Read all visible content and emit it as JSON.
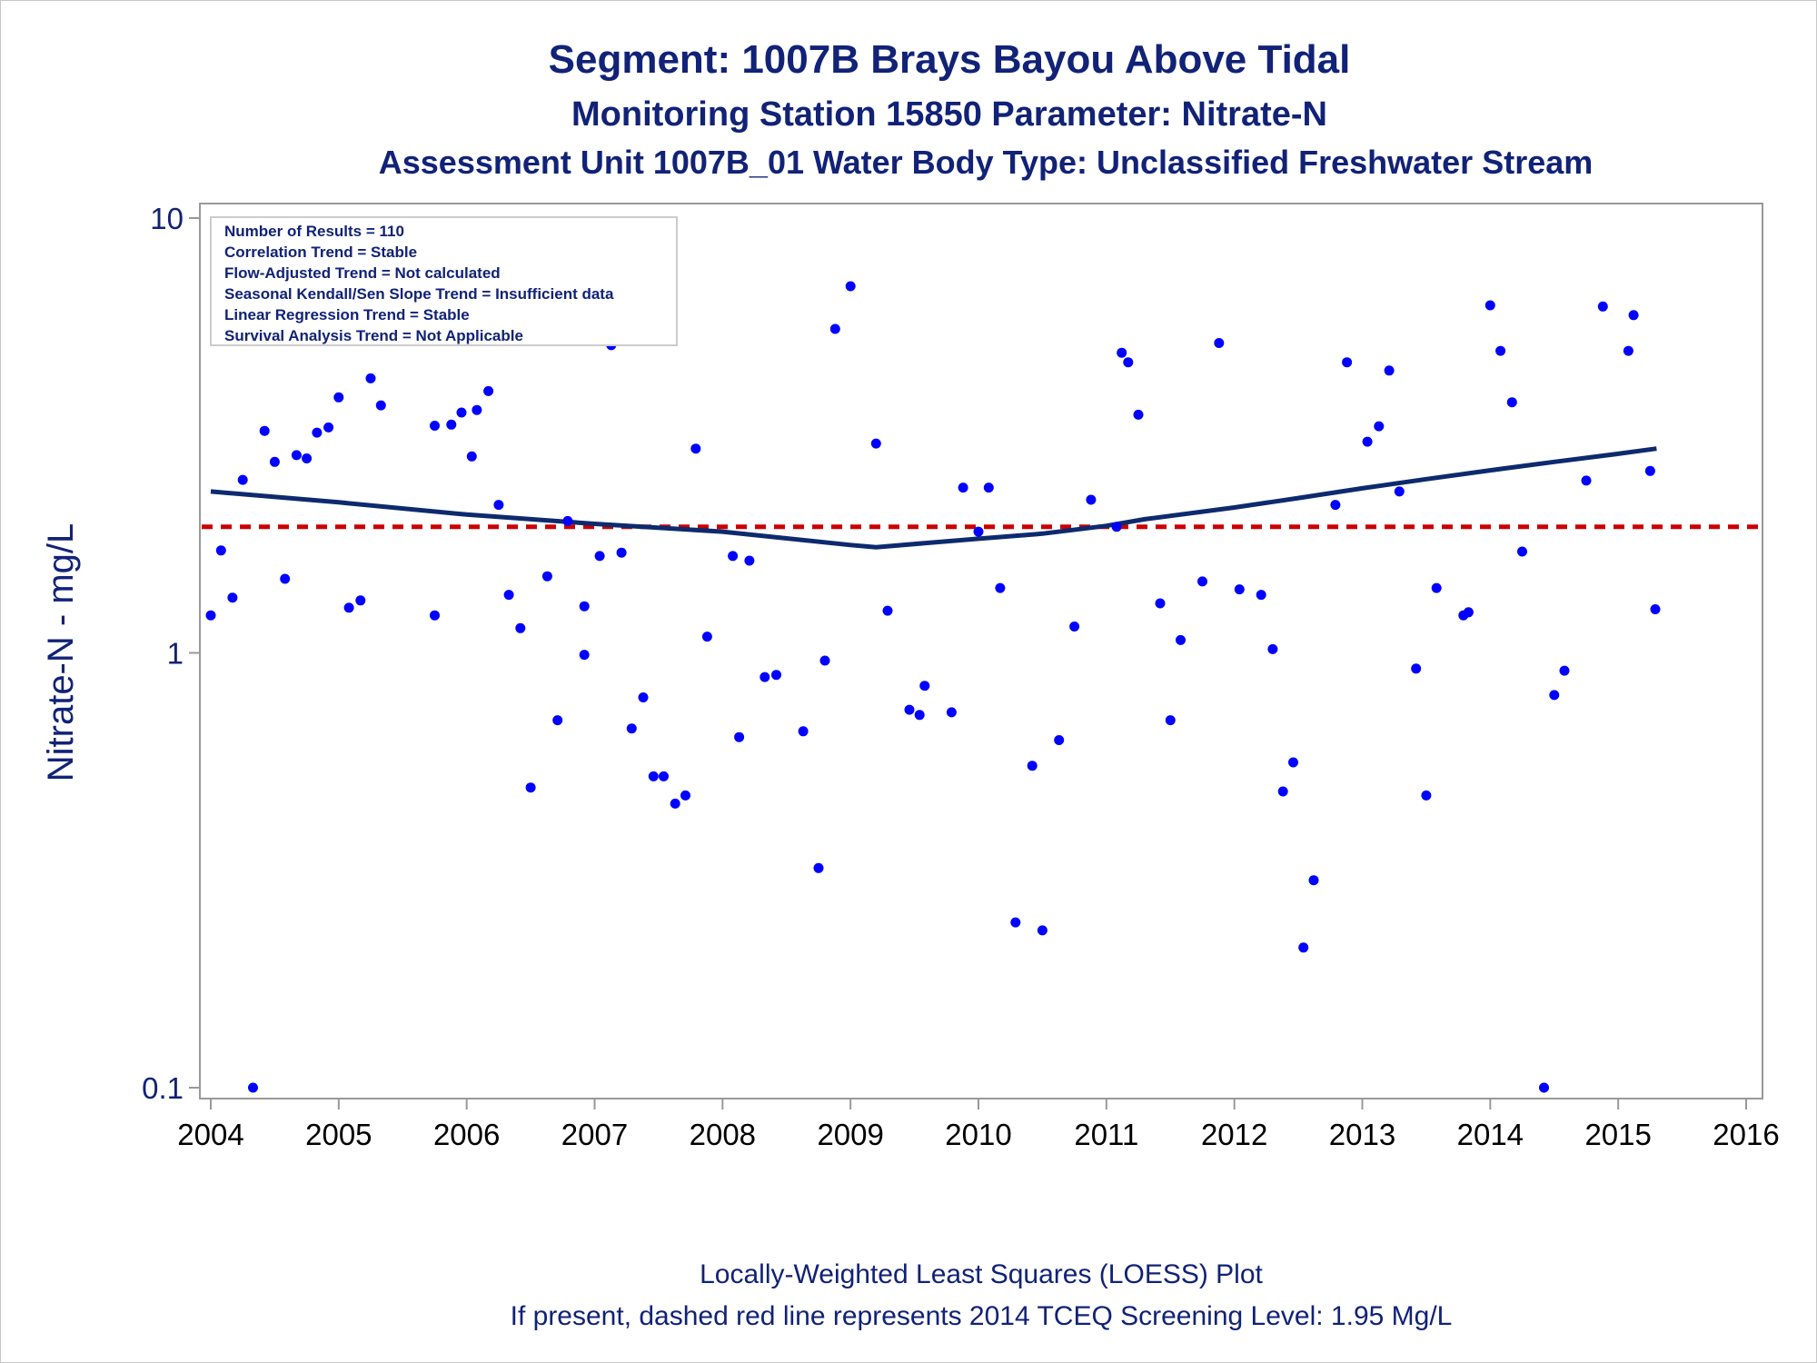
{
  "titles": {
    "line1": "Segment: 1007B  Brays Bayou Above Tidal",
    "line2": "Monitoring Station 15850 Parameter: Nitrate-N",
    "line3": "Assessment Unit 1007B_01   Water Body Type: Unclassified Freshwater Stream"
  },
  "info_box": [
    "Number of Results = 110",
    "Correlation Trend = Stable",
    "Flow-Adjusted Trend = Not calculated",
    "Seasonal Kendall/Sen Slope Trend = Insufficient data",
    "Linear Regression Trend = Stable",
    "Survival Analysis Trend = Not Applicable"
  ],
  "footnotes": {
    "line1": "Locally-Weighted Least Squares (LOESS) Plot",
    "line2": "If present, dashed red line represents 2014 TCEQ Screening Level: 1.95 Mg/L"
  },
  "colors": {
    "title": "#112277",
    "points": "#0000ff",
    "loess": "#0d2a6e",
    "screening": "#cc0000",
    "axis": "#999999"
  },
  "chart_data": {
    "type": "scatter",
    "ylabel": "Nitrate-N - mg/L",
    "xlabel": "",
    "yscale": "log",
    "xlim": [
      2004,
      2016
    ],
    "ylim": [
      0.1,
      10
    ],
    "x_ticks": [
      "2004",
      "2005",
      "2006",
      "2007",
      "2008",
      "2009",
      "2010",
      "2011",
      "2012",
      "2013",
      "2014",
      "2015",
      "2016"
    ],
    "y_ticks": [
      "0.1",
      "1",
      "10"
    ],
    "y_tick_values": [
      0.1,
      1,
      10
    ],
    "screening_level": 1.95,
    "loess": {
      "x": [
        2004.0,
        2005.0,
        2006.0,
        2007.0,
        2008.0,
        2009.0,
        2009.2,
        2009.6,
        2010.0,
        2010.5,
        2011.0,
        2011.3,
        2012.0,
        2012.5,
        2013.0,
        2013.5,
        2014.0,
        2014.5,
        2015.0,
        2015.3
      ],
      "y": [
        2.35,
        2.22,
        2.08,
        1.98,
        1.9,
        1.77,
        1.75,
        1.79,
        1.83,
        1.88,
        1.96,
        2.03,
        2.16,
        2.27,
        2.39,
        2.51,
        2.63,
        2.75,
        2.87,
        2.95
      ]
    },
    "points": {
      "x": [
        2004.0,
        2004.08,
        2004.17,
        2004.25,
        2004.33,
        2004.42,
        2004.5,
        2004.58,
        2004.67,
        2004.75,
        2004.83,
        2004.92,
        2005.0,
        2005.08,
        2005.17,
        2005.25,
        2005.33,
        2005.75,
        2005.75,
        2005.88,
        2005.96,
        2006.04,
        2006.08,
        2006.17,
        2006.25,
        2006.33,
        2006.42,
        2006.5,
        2006.63,
        2006.71,
        2006.79,
        2006.92,
        2006.92,
        2007.04,
        2007.13,
        2007.21,
        2007.29,
        2007.38,
        2007.46,
        2007.54,
        2007.63,
        2007.71,
        2007.79,
        2007.88,
        2008.08,
        2008.13,
        2008.21,
        2008.33,
        2008.42,
        2008.63,
        2008.75,
        2008.8,
        2008.88,
        2009.0,
        2009.2,
        2009.29,
        2009.46,
        2009.54,
        2009.58,
        2009.79,
        2009.88,
        2010.0,
        2010.08,
        2010.17,
        2010.29,
        2010.42,
        2010.5,
        2010.63,
        2010.75,
        2010.88,
        2011.08,
        2011.12,
        2011.17,
        2011.25,
        2011.42,
        2011.5,
        2011.58,
        2011.75,
        2011.88,
        2012.04,
        2012.21,
        2012.3,
        2012.38,
        2012.46,
        2012.54,
        2012.62,
        2012.79,
        2012.88,
        2013.04,
        2013.13,
        2013.21,
        2013.29,
        2013.42,
        2013.5,
        2013.58,
        2013.79,
        2013.83,
        2014.0,
        2014.08,
        2014.17,
        2014.25,
        2014.42,
        2014.5,
        2014.58,
        2014.75,
        2014.88,
        2015.08,
        2015.12,
        2015.25,
        2015.29
      ],
      "y": [
        1.22,
        1.72,
        1.34,
        2.5,
        0.1,
        3.24,
        2.75,
        1.48,
        2.85,
        2.8,
        3.21,
        3.3,
        3.87,
        1.27,
        1.32,
        4.28,
        3.71,
        3.33,
        1.22,
        3.35,
        3.57,
        2.83,
        3.62,
        4.0,
        2.19,
        1.36,
        1.14,
        0.49,
        1.5,
        0.7,
        2.01,
        1.28,
        0.99,
        1.67,
        5.1,
        1.7,
        0.67,
        0.79,
        0.52,
        0.52,
        0.45,
        0.47,
        2.95,
        1.09,
        1.67,
        0.64,
        1.63,
        0.88,
        0.89,
        0.66,
        0.32,
        0.96,
        5.56,
        6.97,
        3.03,
        1.25,
        0.74,
        0.72,
        0.84,
        0.73,
        2.4,
        1.9,
        2.4,
        1.41,
        0.24,
        0.55,
        0.23,
        0.63,
        1.15,
        2.25,
        1.95,
        4.9,
        4.66,
        3.53,
        1.3,
        0.7,
        1.07,
        1.46,
        5.16,
        1.4,
        1.36,
        1.02,
        0.48,
        0.56,
        0.21,
        0.3,
        2.19,
        4.66,
        3.06,
        3.32,
        4.46,
        2.35,
        0.92,
        0.47,
        1.41,
        1.22,
        1.24,
        6.3,
        4.95,
        3.77,
        1.71,
        0.1,
        0.8,
        0.91,
        2.49,
        6.26,
        4.95,
        5.98,
        2.62,
        1.26
      ]
    }
  }
}
